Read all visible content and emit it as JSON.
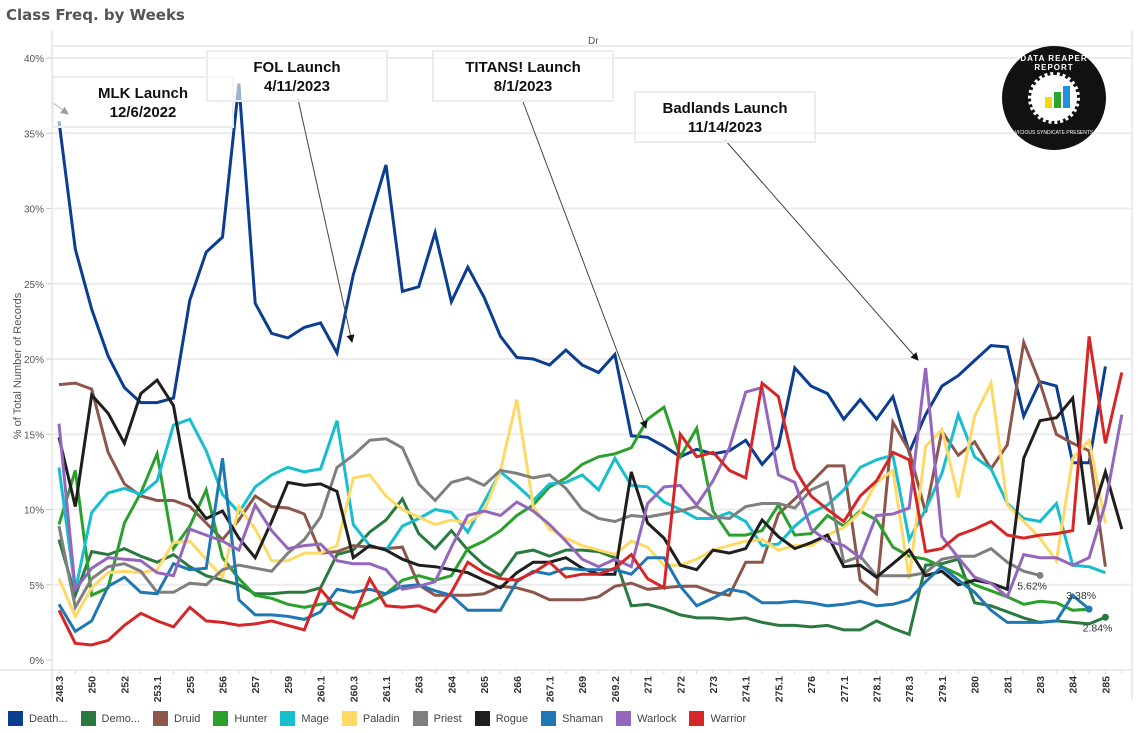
{
  "chart_data": {
    "type": "line",
    "title": "Class Freq. by Weeks",
    "column_header": "Dr",
    "xlabel": "",
    "ylabel": "% of Total Number of Records",
    "ylim": [
      0,
      40
    ],
    "yticks": [
      "0%",
      "5%",
      "10%",
      "15%",
      "20%",
      "25%",
      "30%",
      "35%",
      "40%"
    ],
    "grid": true,
    "legend_position": "bottom",
    "x_tick_labels": [
      "248.3",
      "250",
      "252",
      "253.1",
      "255",
      "256",
      "257",
      "259",
      "260.1",
      "260.3",
      "261.1",
      "263",
      "264",
      "265",
      "266",
      "267.1",
      "269",
      "269.2",
      "271",
      "272",
      "273",
      "274.1",
      "275.1",
      "276",
      "277.1",
      "278.1",
      "278.3",
      "279.1",
      "280",
      "281",
      "283",
      "284",
      "285"
    ],
    "series": [
      {
        "name": "Death Knight",
        "legend_label": "Death...",
        "color": "#0b3d91",
        "values": [
          35.8,
          27.3,
          23.3,
          20.2,
          18.1,
          17.1,
          17.1,
          17.4,
          23.9,
          27.1,
          28.1,
          38.3,
          23.7,
          21.7,
          21.4,
          22.1,
          22.4,
          20.4,
          25.6,
          29.3,
          32.9,
          24.5,
          24.8,
          28.4,
          23.8,
          26.1,
          24.1,
          21.5,
          20.1,
          20.0,
          19.6,
          20.6,
          19.6,
          19.1,
          20.3,
          14.9,
          14.8,
          14.2,
          13.5,
          14.0,
          13.7,
          13.9,
          14.6,
          13.0,
          14.2,
          19.4,
          18.2,
          17.7,
          16.0,
          17.3,
          16.0,
          17.5,
          13.8,
          16.3,
          18.2,
          18.9,
          19.9,
          20.9,
          20.8,
          16.2,
          18.5,
          18.2,
          13.1,
          13.1,
          19.5
        ]
      },
      {
        "name": "Demon Hunter",
        "legend_label": "Demo...",
        "color": "#2a7a3f",
        "values": [
          8.0,
          4.3,
          7.2,
          7.0,
          7.4,
          6.9,
          6.5,
          7.0,
          6.2,
          5.6,
          5.3,
          5.0,
          4.4,
          4.4,
          4.5,
          4.5,
          4.8,
          7.0,
          7.3,
          8.5,
          9.3,
          10.7,
          8.4,
          7.4,
          8.6,
          7.3,
          6.3,
          5.6,
          7.1,
          7.3,
          6.9,
          7.3,
          7.3,
          7.2,
          6.8,
          3.6,
          3.7,
          3.4,
          3.0,
          2.8,
          2.8,
          2.7,
          2.8,
          2.5,
          2.3,
          2.3,
          2.2,
          2.3,
          2.0,
          2.0,
          2.6,
          2.1,
          1.7,
          6.3,
          6.4,
          6.7,
          3.8,
          3.6,
          3.2,
          2.8,
          2.5,
          2.6,
          2.5,
          2.4,
          2.84
        ]
      },
      {
        "name": "Druid",
        "legend_label": "Druid",
        "color": "#8c564b",
        "values": [
          18.3,
          18.4,
          18.0,
          13.8,
          11.7,
          10.9,
          10.6,
          10.6,
          10.2,
          9.1,
          8.0,
          9.3,
          10.9,
          10.2,
          10.1,
          9.7,
          7.1,
          7.2,
          7.6,
          7.5,
          7.4,
          7.5,
          5.0,
          4.3,
          4.3,
          4.3,
          4.4,
          4.9,
          4.8,
          4.5,
          4.0,
          4.0,
          4.0,
          4.2,
          4.9,
          5.1,
          4.7,
          4.8,
          4.9,
          4.9,
          4.5,
          4.3,
          6.5,
          6.5,
          9.7,
          10.7,
          11.8,
          12.9,
          12.9,
          5.3,
          4.4,
          15.8,
          13.9,
          9.8,
          15.2,
          13.6,
          14.5,
          12.7,
          14.3,
          21.1,
          18.4,
          15.0,
          14.4,
          13.9,
          6.2
        ]
      },
      {
        "name": "Hunter",
        "legend_label": "Hunter",
        "color": "#2ca02c",
        "values": [
          9.0,
          12.6,
          4.3,
          4.8,
          9.1,
          11.1,
          13.7,
          7.4,
          8.9,
          11.3,
          6.8,
          5.4,
          4.3,
          4.1,
          3.7,
          3.5,
          3.7,
          3.8,
          3.4,
          3.8,
          4.4,
          5.3,
          5.6,
          5.3,
          5.6,
          7.4,
          7.9,
          8.6,
          9.6,
          10.3,
          11.5,
          12.1,
          13.0,
          13.5,
          13.7,
          14.1,
          16.0,
          16.8,
          13.5,
          15.4,
          9.9,
          8.3,
          8.3,
          8.6,
          10.3,
          8.3,
          8.4,
          9.6,
          8.9,
          9.9,
          9.3,
          7.5,
          6.9,
          6.7,
          6.2,
          5.7,
          5.0,
          4.6,
          4.2,
          3.7,
          3.9,
          3.8,
          3.3,
          3.38
        ]
      },
      {
        "name": "Mage",
        "legend_label": "Mage",
        "color": "#17becf",
        "values": [
          12.8,
          4.6,
          9.8,
          11.1,
          11.4,
          11.0,
          11.9,
          15.6,
          16.0,
          13.9,
          11.0,
          9.8,
          11.5,
          12.3,
          12.8,
          12.5,
          12.7,
          15.9,
          9.0,
          7.6,
          7.3,
          8.9,
          9.4,
          10.0,
          9.8,
          8.5,
          10.5,
          12.5,
          11.6,
          10.6,
          11.7,
          11.8,
          12.3,
          11.3,
          13.4,
          11.6,
          11.5,
          10.5,
          10.0,
          9.4,
          9.4,
          9.8,
          9.2,
          7.6,
          7.7,
          8.9,
          9.8,
          10.3,
          11.3,
          12.8,
          13.3,
          13.6,
          8.0,
          10.0,
          12.4,
          16.3,
          13.5,
          12.7,
          10.4,
          9.4,
          9.2,
          10.4,
          6.3,
          6.2,
          5.8
        ]
      },
      {
        "name": "Paladin",
        "legend_label": "Paladin",
        "color": "#ffd966",
        "values": [
          5.4,
          2.9,
          4.8,
          5.8,
          5.9,
          5.8,
          6.0,
          7.8,
          7.9,
          6.7,
          5.5,
          10.2,
          8.7,
          6.6,
          6.6,
          7.1,
          7.1,
          7.6,
          12.1,
          12.3,
          10.9,
          10.0,
          9.5,
          9.0,
          9.3,
          9.1,
          9.9,
          12.6,
          17.3,
          10.2,
          8.7,
          8.1,
          7.6,
          7.3,
          7.0,
          7.9,
          7.5,
          6.3,
          6.3,
          6.7,
          7.3,
          7.6,
          7.9,
          8.0,
          7.3,
          7.6,
          7.6,
          8.3,
          8.8,
          9.8,
          11.8,
          12.6,
          5.4,
          14.2,
          15.3,
          10.8,
          16.2,
          18.4,
          10.3,
          9.2,
          8.1,
          6.6,
          13.4,
          14.6,
          9.1
        ]
      },
      {
        "name": "Priest",
        "legend_label": "Priest",
        "color": "#7f7f7f",
        "values": [
          8.9,
          3.5,
          5.4,
          6.2,
          6.4,
          5.9,
          4.5,
          4.5,
          5.1,
          5.0,
          6.0,
          6.3,
          6.1,
          5.9,
          7.1,
          8.0,
          9.5,
          12.8,
          13.6,
          14.6,
          14.7,
          14.1,
          11.7,
          10.6,
          11.8,
          12.1,
          11.6,
          12.6,
          12.4,
          12.1,
          12.3,
          11.4,
          10.0,
          9.4,
          9.2,
          9.6,
          9.5,
          9.7,
          9.9,
          10.2,
          9.5,
          9.4,
          10.2,
          10.4,
          10.4,
          10.1,
          11.3,
          11.8,
          6.5,
          6.9,
          5.6,
          5.6,
          5.6,
          5.8,
          6.7,
          6.9,
          6.9,
          7.4,
          6.5,
          5.9,
          5.62
        ]
      },
      {
        "name": "Rogue",
        "legend_label": "Rogue",
        "color": "#1f1f1f",
        "values": [
          14.8,
          10.2,
          17.6,
          16.4,
          14.4,
          17.7,
          18.6,
          16.9,
          10.8,
          9.4,
          9.9,
          8.1,
          6.8,
          9.2,
          11.8,
          11.6,
          11.7,
          11.2,
          6.8,
          7.6,
          7.3,
          6.7,
          6.3,
          6.2,
          6.0,
          5.8,
          5.3,
          4.8,
          5.8,
          6.5,
          6.5,
          6.8,
          6.1,
          5.7,
          5.7,
          12.5,
          9.1,
          8.1,
          6.3,
          6.0,
          7.3,
          7.1,
          7.4,
          9.3,
          8.2,
          7.4,
          7.8,
          8.3,
          6.2,
          6.3,
          5.5,
          6.4,
          7.3,
          5.6,
          5.9,
          5.0,
          5.3,
          5.1,
          4.7,
          13.4,
          15.9,
          16.1,
          17.4,
          9.0,
          12.5,
          8.7
        ]
      },
      {
        "name": "Shaman",
        "legend_label": "Shaman",
        "color": "#1f77b4",
        "values": [
          3.7,
          1.9,
          2.6,
          4.9,
          5.5,
          4.5,
          4.4,
          6.4,
          6.0,
          6.1,
          13.4,
          4.0,
          3.0,
          3.0,
          2.9,
          2.7,
          3.2,
          4.7,
          4.5,
          4.7,
          4.4,
          4.9,
          5.0,
          4.6,
          4.3,
          3.3,
          3.3,
          3.3,
          5.2,
          5.9,
          5.7,
          6.1,
          6.0,
          6.0,
          6.0,
          5.7,
          6.8,
          6.8,
          4.9,
          3.6,
          4.1,
          4.7,
          4.5,
          3.8,
          3.8,
          3.9,
          3.8,
          3.6,
          3.7,
          3.9,
          3.6,
          3.7,
          4.0,
          5.2,
          6.2,
          5.3,
          4.5,
          3.3,
          2.5,
          2.5,
          2.5,
          2.6,
          4.3,
          3.38
        ]
      },
      {
        "name": "Warlock",
        "legend_label": "Warlock",
        "color": "#9467bd",
        "values": [
          15.7,
          4.7,
          6.1,
          6.8,
          6.7,
          6.6,
          5.8,
          5.6,
          8.7,
          8.3,
          7.9,
          7.3,
          10.3,
          8.6,
          7.4,
          7.6,
          7.7,
          6.6,
          6.4,
          6.4,
          6.0,
          4.7,
          4.9,
          5.2,
          7.5,
          9.6,
          9.9,
          9.6,
          10.5,
          9.9,
          9.0,
          7.9,
          6.7,
          6.2,
          6.7,
          6.2,
          10.4,
          11.5,
          11.6,
          10.3,
          11.9,
          14.1,
          17.8,
          18.1,
          12.3,
          11.8,
          8.7,
          7.9,
          7.6,
          6.8,
          9.6,
          9.7,
          10.1,
          19.4,
          8.2,
          6.8,
          5.5,
          5.1,
          4.2,
          7.0,
          6.8,
          6.8,
          6.3,
          6.8,
          10.4,
          16.3
        ]
      },
      {
        "name": "Warrior",
        "legend_label": "Warrior",
        "color": "#d62728",
        "values": [
          3.3,
          1.1,
          1.0,
          1.3,
          2.3,
          3.1,
          2.6,
          2.2,
          3.5,
          2.6,
          2.5,
          2.3,
          2.4,
          2.6,
          2.3,
          2.0,
          4.7,
          3.4,
          2.8,
          5.4,
          3.6,
          3.5,
          3.6,
          3.2,
          4.5,
          6.5,
          5.8,
          5.4,
          5.3,
          5.8,
          6.5,
          5.5,
          5.7,
          5.7,
          6.1,
          7.0,
          5.4,
          4.8,
          15.0,
          13.5,
          13.8,
          12.6,
          12.1,
          18.4,
          17.5,
          12.7,
          10.9,
          10.0,
          9.2,
          10.9,
          11.9,
          13.8,
          13.3,
          7.2,
          7.4,
          8.3,
          8.7,
          9.2,
          8.3,
          8.1,
          8.3,
          8.4,
          8.6,
          21.5,
          14.4,
          19.1
        ]
      }
    ],
    "end_labels": [
      {
        "series": "Priest",
        "text": "5.62%"
      },
      {
        "series": "Shaman",
        "text": "3.38%"
      },
      {
        "series": "Demon Hunter",
        "text": "2.84%"
      }
    ],
    "annotations": [
      {
        "name": "mlk-launch",
        "line1": "MLK Launch",
        "line2": "12/6/2022",
        "target_index": 0
      },
      {
        "name": "fol-launch",
        "line1": "FOL Launch",
        "line2": "4/11/2023",
        "target_index": 18
      },
      {
        "name": "titans-launch",
        "line1": "TITANS! Launch",
        "line2": "8/1/2023",
        "target_index": 36
      },
      {
        "name": "badlands-launch",
        "line1": "Badlands Launch",
        "line2": "11/14/2023",
        "target_index": 53
      }
    ]
  },
  "logo": {
    "title": "DATA REAPER REPORT",
    "subtitle": "VICIOUS SYNDICATE PRESENTS"
  }
}
